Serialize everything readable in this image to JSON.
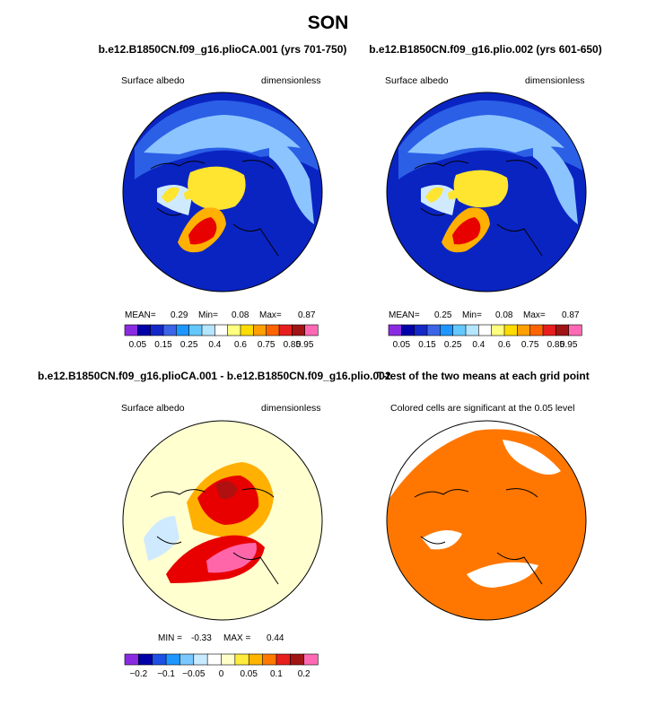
{
  "page": {
    "title": "SON"
  },
  "colors": {
    "ocean": "#0a24c2",
    "deep": "#050a86",
    "mid_blue": "#2a5fe6",
    "light_blue": "#8cc4ff",
    "pale_blue": "#cfeaff",
    "cream": "#ffffd0",
    "yellow": "#ffe430",
    "gold": "#ffb000",
    "orange": "#ff7a00",
    "red": "#e80000",
    "dark_red": "#b01010",
    "pink": "#ff66aa",
    "sig_orange": "#ff7700"
  },
  "chart_data": [
    {
      "type": "heatmap",
      "projection": "north polar stereographic",
      "title": "b.e12.B1850CN.f09_g16.plioCA.001 (yrs 701-750)",
      "left_label": "Surface albedo",
      "right_label": "dimensionless",
      "stats": {
        "mean_label": "MEAN=",
        "mean": "0.29",
        "min_label": "Min=",
        "min": "0.08",
        "max_label": "Max=",
        "max": "0.87"
      },
      "colorbar": {
        "tick_labels": [
          "0.05",
          "0.15",
          "0.25",
          "0.4",
          "0.6",
          "0.75",
          "0.85",
          "0.95"
        ],
        "colors": [
          "#8a2be2",
          "#0000a8",
          "#1428c8",
          "#3c64e6",
          "#1e96ff",
          "#64c8ff",
          "#b4e6ff",
          "#ffffff",
          "#ffff80",
          "#ffdc00",
          "#ffa000",
          "#ff6400",
          "#e61e1e",
          "#a01414",
          "#ff69b4"
        ]
      }
    },
    {
      "type": "heatmap",
      "projection": "north polar stereographic",
      "title": "b.e12.B1850CN.f09_g16.plio.002 (yrs 601-650)",
      "left_label": "Surface albedo",
      "right_label": "dimensionless",
      "stats": {
        "mean_label": "MEAN=",
        "mean": "0.25",
        "min_label": "Min=",
        "min": "0.08",
        "max_label": "Max=",
        "max": "0.87"
      },
      "colorbar": {
        "tick_labels": [
          "0.05",
          "0.15",
          "0.25",
          "0.4",
          "0.6",
          "0.75",
          "0.85",
          "0.95"
        ],
        "colors": [
          "#8a2be2",
          "#0000a8",
          "#1428c8",
          "#3c64e6",
          "#1e96ff",
          "#64c8ff",
          "#b4e6ff",
          "#ffffff",
          "#ffff80",
          "#ffdc00",
          "#ffa000",
          "#ff6400",
          "#e61e1e",
          "#a01414",
          "#ff69b4"
        ]
      }
    },
    {
      "type": "heatmap",
      "projection": "north polar stereographic",
      "title": "b.e12.B1850CN.f09_g16.plioCA.001 - b.e12.B1850CN.f09_g16.plio.002",
      "left_label": "Surface albedo",
      "right_label": "dimensionless",
      "stats": {
        "min_label": "MIN =",
        "min": "-0.33",
        "max_label": "MAX =",
        "max": "0.44"
      },
      "colorbar": {
        "tick_labels": [
          "−0.2",
          "−0.1",
          "−0.05",
          "0",
          "0.05",
          "0.1",
          "0.2"
        ],
        "colors": [
          "#8a2be2",
          "#0000a8",
          "#1e50e6",
          "#1e96ff",
          "#78c8ff",
          "#c8ebff",
          "#ffffff",
          "#ffffc8",
          "#ffeb3c",
          "#ffb400",
          "#ff7800",
          "#e61e1e",
          "#a01414",
          "#ff69b4"
        ]
      }
    },
    {
      "type": "heatmap",
      "projection": "north polar stereographic",
      "title": "T-test of the two means at each grid point",
      "subtitle": "Colored cells are significant at the 0.05 level"
    }
  ]
}
